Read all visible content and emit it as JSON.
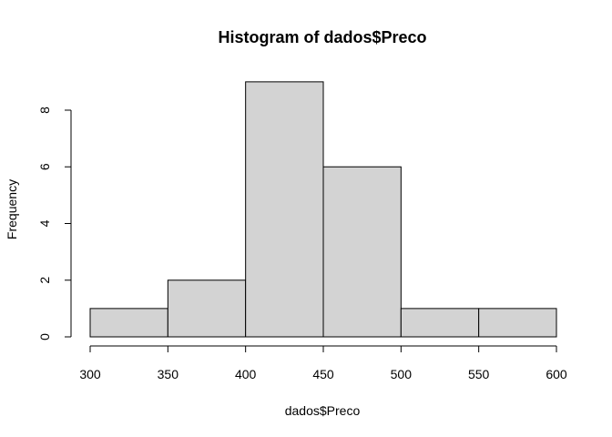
{
  "chart_data": {
    "type": "histogram",
    "title": "Histogram of dados$Preco",
    "xlabel": "dados$Preco",
    "ylabel": "Frequency",
    "bins": [
      {
        "start": 300,
        "end": 350,
        "count": 1
      },
      {
        "start": 350,
        "end": 400,
        "count": 2
      },
      {
        "start": 400,
        "end": 450,
        "count": 9
      },
      {
        "start": 450,
        "end": 500,
        "count": 6
      },
      {
        "start": 500,
        "end": 550,
        "count": 1
      },
      {
        "start": 550,
        "end": 600,
        "count": 1
      }
    ],
    "x_ticks": [
      300,
      350,
      400,
      450,
      500,
      550,
      600
    ],
    "y_ticks": [
      0,
      2,
      4,
      6,
      8
    ],
    "xlim": [
      300,
      600
    ],
    "ylim": [
      0,
      9
    ],
    "grid": false,
    "bar_fill": "#d3d3d3",
    "bar_stroke": "#000000"
  }
}
